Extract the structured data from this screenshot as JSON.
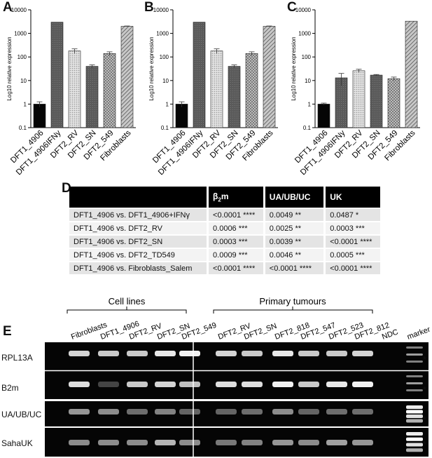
{
  "panels": {
    "A": "A",
    "B": "B",
    "C": "C",
    "D": "D",
    "E": "E"
  },
  "chart_data": [
    {
      "panel": "A",
      "type": "bar",
      "categories": [
        "DFT1_4906",
        "DFT1_4906IFNy",
        "DFT2_RV",
        "DFT2_SN",
        "DFT2_549",
        "Fibroblasts"
      ],
      "values": [
        1,
        3000,
        180,
        40,
        140,
        2000
      ],
      "errors": [
        0.25,
        0,
        40,
        6,
        25,
        60
      ],
      "ylabel": "Log10 relative expression",
      "yscale": "log",
      "ylim": [
        0.1,
        10000
      ],
      "yticks": [
        "0.1",
        "1",
        "10",
        "100",
        "1000",
        "10000"
      ],
      "xlabel": "",
      "title": "",
      "grid": false
    },
    {
      "panel": "B",
      "type": "bar",
      "categories": [
        "DFT1_4906",
        "DFT1_4906IFNy",
        "DFT2_RV",
        "DFT2_SN",
        "DFT2_549",
        "Fibroblasts"
      ],
      "values": [
        1,
        3000,
        180,
        40,
        140,
        2000
      ],
      "errors": [
        0.25,
        0,
        40,
        6,
        25,
        60
      ],
      "ylabel": "Log10 relative expression",
      "yscale": "log",
      "ylim": [
        0.1,
        10000
      ],
      "yticks": [
        "0.1",
        "1",
        "10",
        "100",
        "1000",
        "10000"
      ],
      "xlabel": "",
      "title": "",
      "grid": false
    },
    {
      "panel": "C",
      "type": "bar",
      "categories": [
        "DFT1_4906",
        "DFT1_4906IFNy",
        "DFT2_RV",
        "DFT2_SN",
        "DFT2_549",
        "Fibroblasts"
      ],
      "values": [
        1,
        13,
        26,
        17,
        12,
        3300
      ],
      "errors": [
        0.1,
        7,
        4,
        1,
        2,
        0
      ],
      "ylabel": "Log10 relative expression",
      "yscale": "log",
      "ylim": [
        0.1,
        10000
      ],
      "yticks": [
        "0.1",
        "1",
        "10",
        "100",
        "1000",
        "10000"
      ],
      "xlabel": "",
      "title": "",
      "grid": false
    }
  ],
  "bar_styles": [
    "#050505",
    "#666666",
    "#d2d2d2",
    "#4a4a4a",
    "#a0a0a0",
    "#8a8a8a"
  ],
  "table": {
    "headers": [
      "",
      "β2m",
      "UA/UB/UC",
      "UK"
    ],
    "rows": [
      [
        "DFT1_4906  vs. DFT1_4906+IFNγ",
        "<0.0001 ****",
        "0.0049 **",
        "0.0487 *"
      ],
      [
        "DFT1_4906  vs. DFT2_RV",
        "0.0006 ***",
        "0.0025 **",
        "0.0003 ***"
      ],
      [
        "DFT1_4906  vs. DFT2_SN",
        "0.0003 ***",
        "0.0039 **",
        "<0.0001 ****"
      ],
      [
        "DFT1_4906  vs. DFT2_TD549",
        "0.0009 ***",
        "0.0046 **",
        "0.0005 ***"
      ],
      [
        "DFT1_4906  vs. Fibroblasts_Salem",
        "<0.0001 ****",
        "<0.0001 ****",
        "<0.0001 ****"
      ]
    ]
  },
  "gel": {
    "group_cell_lines": "Cell lines",
    "group_primary": "Primary tumours",
    "lanes": [
      "Fibroblasts",
      "DFT1_4906",
      "DFT2_RV",
      "DFT2_SN",
      "DFT2_549",
      "DFT2_RV",
      "DFT2_SN",
      "DFT2_818",
      "DFT2_547",
      "DFT2_523",
      "DFT2_812",
      "NDC",
      "marker"
    ],
    "rows": [
      "RPL13A",
      "B2m",
      "UA/UB/UC",
      "SahaUK"
    ],
    "marker_symbol": "*",
    "band_intensity": [
      [
        0.85,
        0.8,
        0.8,
        0.95,
        1.0,
        0.85,
        0.8,
        0.95,
        0.8,
        0.8,
        0.85,
        0,
        0
      ],
      [
        0.9,
        0.15,
        0.8,
        0.85,
        0.75,
        0.9,
        0.9,
        1.0,
        0.8,
        0.95,
        1.0,
        0,
        0
      ],
      [
        0.55,
        0.5,
        0.35,
        0.45,
        0.3,
        0.3,
        0.35,
        0.5,
        0.3,
        0.35,
        0.35,
        0,
        0
      ],
      [
        0.5,
        0.5,
        0.5,
        0.7,
        0.5,
        0.4,
        0.45,
        0.55,
        0.5,
        0.6,
        0.55,
        0,
        0
      ]
    ]
  }
}
